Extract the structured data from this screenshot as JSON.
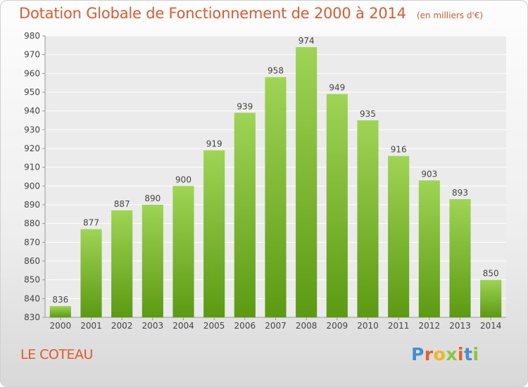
{
  "header": {
    "title": "Dotation Globale de Fonctionnement de 2000 à 2014",
    "unit": "(en milliers d'€)"
  },
  "footer": {
    "commune": "LE COTEAU",
    "logo_text": "Proxiti"
  },
  "colors": {
    "title": "#e05a2b",
    "bar_top": "#9fd455",
    "bar_bottom": "#5c9a12",
    "logo_letters": [
      "#3f8fd8",
      "#e95d2a",
      "#f2b51c",
      "#8bc53f",
      "#e95d2a",
      "#3f8fd8",
      "#8bc53f"
    ]
  },
  "chart_data": {
    "type": "bar",
    "title": "Dotation Globale de Fonctionnement de 2000 à 2014",
    "subtitle": "(en milliers d'€)",
    "xlabel": "",
    "ylabel": "",
    "categories": [
      "2000",
      "2001",
      "2002",
      "2003",
      "2004",
      "2005",
      "2006",
      "2007",
      "2008",
      "2009",
      "2010",
      "2011",
      "2012",
      "2013",
      "2014"
    ],
    "values": [
      836,
      877,
      887,
      890,
      900,
      919,
      939,
      958,
      974,
      949,
      935,
      916,
      903,
      893,
      850
    ],
    "ylim": [
      830,
      980
    ],
    "yticks": [
      830,
      840,
      850,
      860,
      870,
      880,
      890,
      900,
      910,
      920,
      930,
      940,
      950,
      960,
      970,
      980
    ],
    "grid": true,
    "data_labels": true
  }
}
